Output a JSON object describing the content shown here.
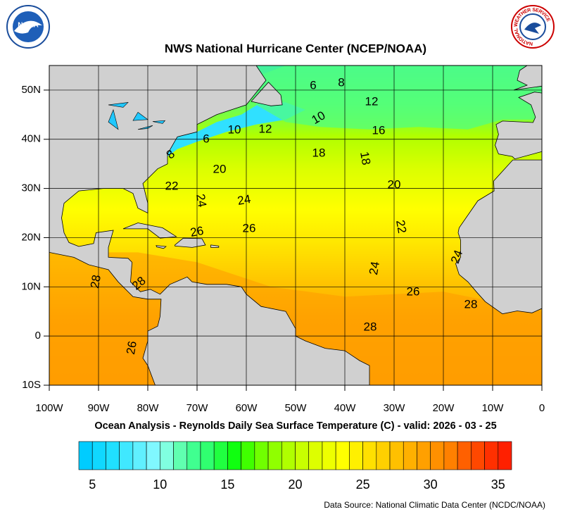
{
  "header": {
    "title": "NWS National Hurricane Center (NCEP/NOAA)",
    "logos": {
      "noaa": "NOAA",
      "nws": "NATIONAL WEATHER SERVICE"
    }
  },
  "map": {
    "lonlim": [
      -100,
      0
    ],
    "latlim": [
      -10,
      55
    ],
    "lonticks": [
      {
        "value": -100,
        "label": "100W"
      },
      {
        "value": -90,
        "label": "90W"
      },
      {
        "value": -80,
        "label": "80W"
      },
      {
        "value": -70,
        "label": "70W"
      },
      {
        "value": -60,
        "label": "60W"
      },
      {
        "value": -50,
        "label": "50W"
      },
      {
        "value": -40,
        "label": "40W"
      },
      {
        "value": -30,
        "label": "30W"
      },
      {
        "value": -20,
        "label": "20W"
      },
      {
        "value": -10,
        "label": "10W"
      },
      {
        "value": 0,
        "label": "0"
      }
    ],
    "latticks": [
      {
        "value": 50,
        "label": "50N"
      },
      {
        "value": 40,
        "label": "40N"
      },
      {
        "value": 30,
        "label": "30N"
      },
      {
        "value": 20,
        "label": "20N"
      },
      {
        "value": 10,
        "label": "10N"
      },
      {
        "value": 0,
        "label": "0"
      },
      {
        "value": -10,
        "label": "10S"
      }
    ],
    "contour_labels": [
      6,
      8,
      12,
      10,
      16,
      10,
      12,
      6,
      8,
      18,
      18,
      20,
      22,
      20,
      24,
      24,
      26,
      26,
      22,
      24,
      24,
      28,
      28,
      26,
      28,
      28,
      26
    ]
  },
  "caption": "Ocean Analysis - Reynolds Daily Sea Surface Temperature (C) - valid: 2026 - 03 - 25",
  "colorbar": {
    "range": [
      4,
      36
    ],
    "ticks": [
      5,
      10,
      15,
      20,
      25,
      30,
      35
    ],
    "colors": [
      "#00ccff",
      "#10d8ff",
      "#20e0ff",
      "#40e8ff",
      "#60f0ff",
      "#80f8ff",
      "#80ffe0",
      "#60ffb0",
      "#40ff90",
      "#30ff70",
      "#20ff40",
      "#10ff10",
      "#40ff00",
      "#70ff00",
      "#90ff00",
      "#b0ff00",
      "#c8ff00",
      "#ddff00",
      "#eeff00",
      "#ffff00",
      "#fff000",
      "#ffe000",
      "#ffd000",
      "#ffc000",
      "#ffb000",
      "#ffa000",
      "#ff9000",
      "#ff8000",
      "#ff6000",
      "#ff4800",
      "#ff3000",
      "#ff2000"
    ]
  },
  "footer": "Data Source: National Climatic Data Center (NCDC/NOAA)"
}
